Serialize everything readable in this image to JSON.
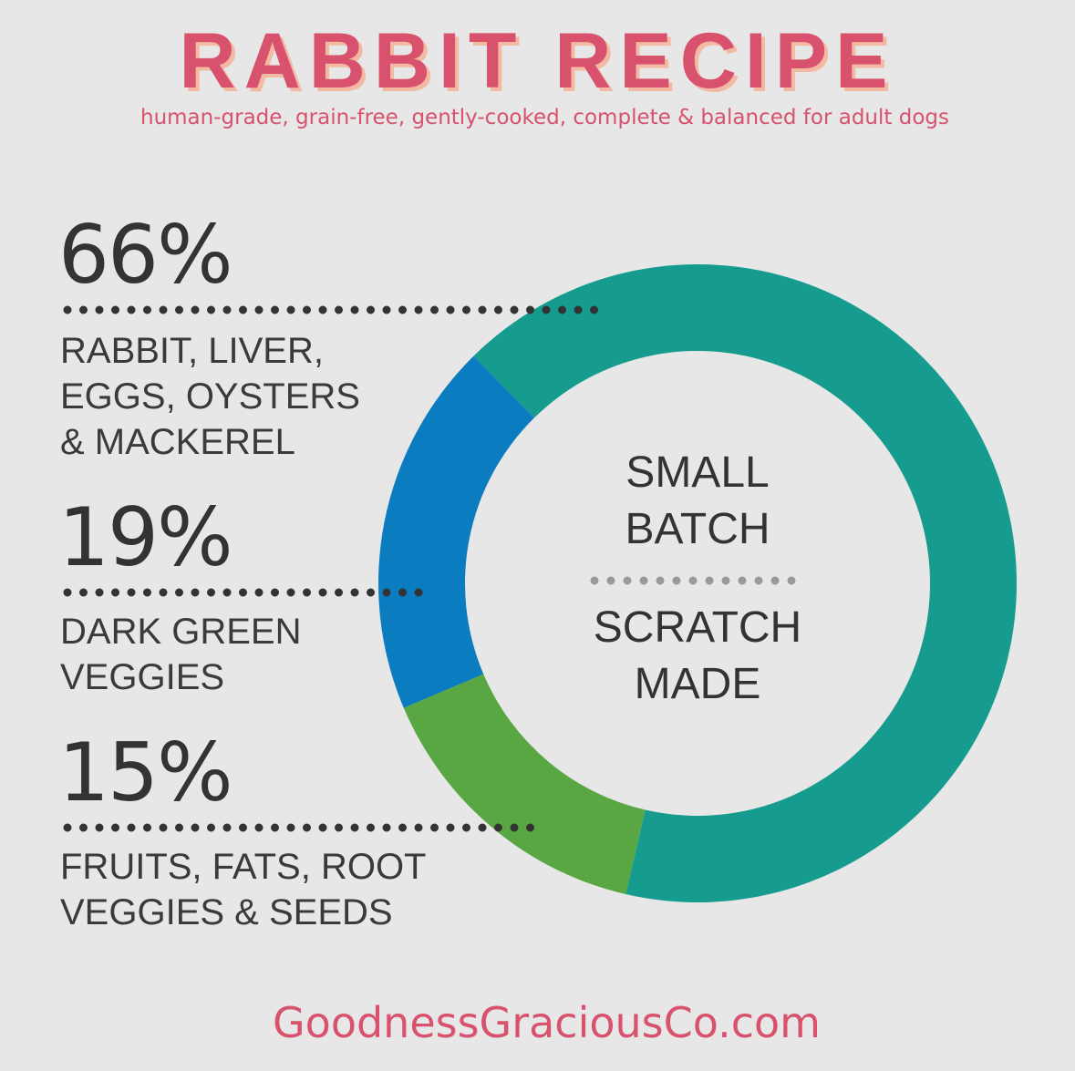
{
  "chart_data": {
    "type": "donut",
    "title": "RABBIT RECIPE",
    "subtitle": "human-grade, grain-free, gently-cooked, complete & balanced for adult dogs",
    "categories": [
      "RABBIT, LIVER,\nEGGS, OYSTERS\n& MACKEREL",
      "DARK GREEN\nVEGGIES",
      "FRUITS, FATS, ROOT\nVEGGIES & SEEDS"
    ],
    "values": [
      66,
      19,
      15
    ],
    "value_labels": [
      "66%",
      "19%",
      "15%"
    ],
    "colors": [
      "#169b8f",
      "#0b7cc0",
      "#58a743"
    ],
    "center_text": [
      "SMALL\nBATCH",
      "SCRATCH\nMADE"
    ],
    "footer": "GoodnessGraciousCo.com"
  }
}
